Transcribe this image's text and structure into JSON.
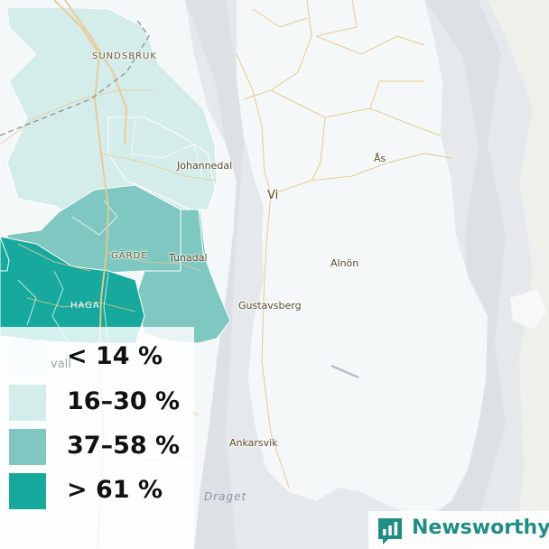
{
  "map": {
    "places": {
      "sundsbruk": "SUNDSBRUK",
      "johannedal": "Johannedal",
      "as": "Ås",
      "vi": "Vi",
      "alnon": "Alnön",
      "garde": "GÄRDE",
      "tunadal": "Tunadal",
      "haga": "HAGA",
      "gustavsberg": "Gustavsberg",
      "vall": "vall",
      "ankarsvik": "Ankarsvik",
      "draget": "Draget"
    },
    "colors": {
      "land": "#f4f8f9",
      "water": "#e6e9ec",
      "road": "#e8c98f",
      "tier1": "#f7fcfc",
      "tier2": "#d4ecea",
      "tier3": "#7fc8c1",
      "tier4": "#17a99d"
    }
  },
  "legend": {
    "items": [
      {
        "label": "< 14 %",
        "color": "#f7fcfc"
      },
      {
        "label": "16–30 %",
        "color": "#d4ecea"
      },
      {
        "label": "37–58 %",
        "color": "#7fc8c1"
      },
      {
        "label": "> 61 %",
        "color": "#17a99d"
      }
    ]
  },
  "brand": {
    "name": "Newsworthy",
    "icon": "newsworthy-logo-icon",
    "color": "#1f8f86"
  }
}
